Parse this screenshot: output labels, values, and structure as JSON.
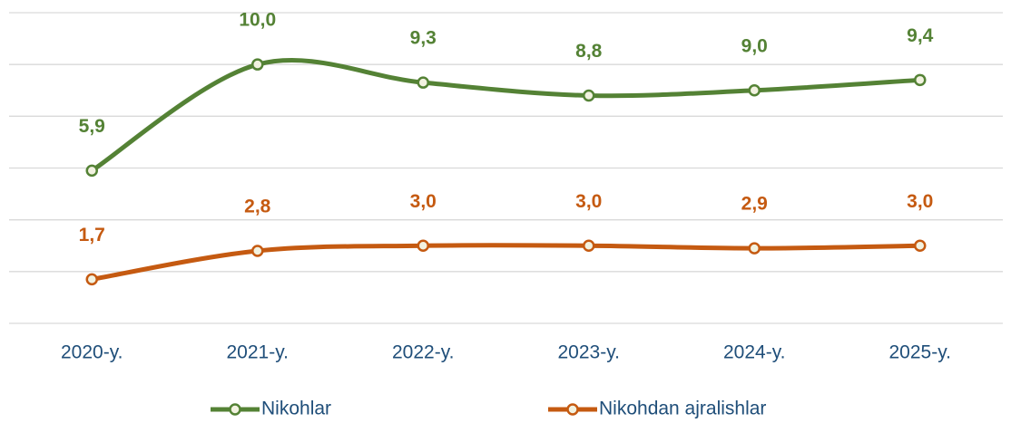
{
  "chart_data": {
    "type": "line",
    "categories": [
      "2020-y.",
      "2021-y.",
      "2022-y.",
      "2023-y.",
      "2024-y.",
      "2025-y."
    ],
    "series": [
      {
        "name": "Nikohlar",
        "color": "#548235",
        "values": [
          5.9,
          10.0,
          9.3,
          8.8,
          9.0,
          9.4
        ],
        "value_labels": [
          "5,9",
          "10,0",
          "9,3",
          "8,8",
          "9,0",
          "9,4"
        ]
      },
      {
        "name": "Nikohdan ajralishlar",
        "color": "#c55a11",
        "values": [
          1.7,
          2.8,
          3.0,
          3.0,
          2.9,
          3.0
        ],
        "value_labels": [
          "1,7",
          "2,8",
          "3,0",
          "3,0",
          "2,9",
          "3,0"
        ]
      }
    ],
    "ylim": [
      0,
      12
    ],
    "yticks": [
      0,
      2,
      4,
      6,
      8,
      10,
      12
    ],
    "grid": true,
    "legend": "bottom"
  }
}
